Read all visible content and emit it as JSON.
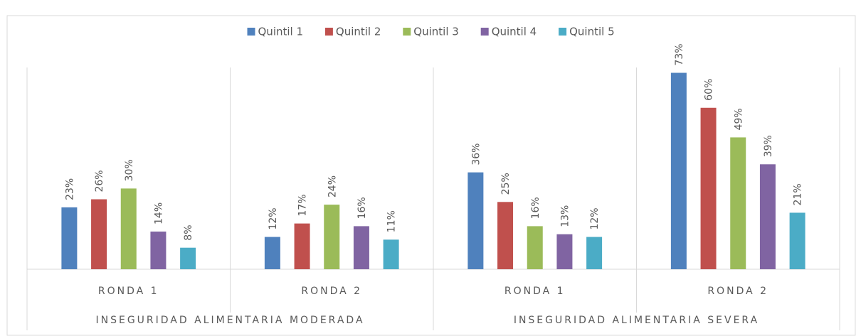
{
  "chart_data": {
    "type": "bar",
    "categories": [
      "RONDA 1",
      "RONDA 2",
      "RONDA 1",
      "RONDA 2"
    ],
    "groups": [
      "INSEGURIDAD ALIMENTARIA MODERADA",
      "INSEGURIDAD ALIMENTARIA SEVERA"
    ],
    "series": [
      {
        "name": "Quintil 1",
        "color": "#4f81bd",
        "values": [
          23,
          12,
          36,
          73
        ],
        "value_labels": [
          "23%",
          "12%",
          "36%",
          "73%"
        ]
      },
      {
        "name": "Quintil 2",
        "color": "#c0504d",
        "values": [
          26,
          17,
          25,
          60
        ],
        "value_labels": [
          "26%",
          "17%",
          "25%",
          "60%"
        ]
      },
      {
        "name": "Quintil 3",
        "color": "#9bbb59",
        "values": [
          30,
          24,
          16,
          49
        ],
        "value_labels": [
          "30%",
          "24%",
          "16%",
          "49%"
        ]
      },
      {
        "name": "Quintil 4",
        "color": "#8064a2",
        "values": [
          14,
          16,
          13,
          39
        ],
        "value_labels": [
          "14%",
          "16%",
          "13%",
          "39%"
        ]
      },
      {
        "name": "Quintil 5",
        "color": "#4bacc6",
        "values": [
          8,
          11,
          12,
          21
        ],
        "value_labels": [
          "8%",
          "11%",
          "12%",
          "21%"
        ]
      }
    ],
    "ylim": [
      0,
      80
    ],
    "legend": "top"
  }
}
